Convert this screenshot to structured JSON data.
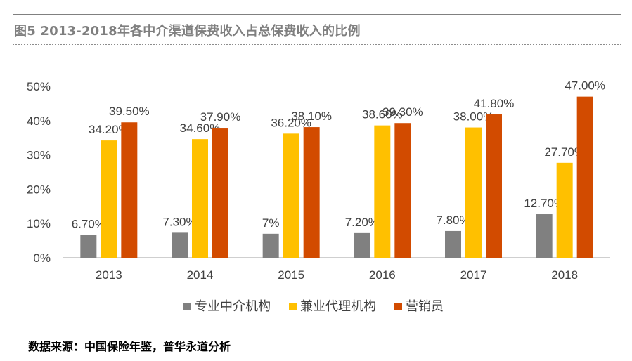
{
  "header": {
    "title": "图5 2013-2018年各中介渠道保费收入占总保费收入的比例"
  },
  "chart_data": {
    "type": "bar",
    "title": "图5 2013-2018年各中介渠道保费收入占总保费收入的比例",
    "categories": [
      "2013",
      "2014",
      "2015",
      "2016",
      "2017",
      "2018"
    ],
    "series": [
      {
        "name": "专业中介机构",
        "color": "#808080",
        "values": [
          6.7,
          7.3,
          7.0,
          7.2,
          7.8,
          12.7
        ],
        "labels": [
          "6.70%",
          "7.30%",
          "7%",
          "7.20%",
          "7.80%",
          "12.70%"
        ]
      },
      {
        "name": "兼业代理机构",
        "color": "#ffc000",
        "values": [
          34.2,
          34.6,
          36.2,
          38.6,
          38.0,
          27.7
        ],
        "labels": [
          "34.20%",
          "34.60%",
          "36.20%",
          "38.60%",
          "38.00%",
          "27.70%"
        ]
      },
      {
        "name": "营销员",
        "color": "#d24b00",
        "values": [
          39.5,
          37.9,
          38.1,
          39.3,
          41.8,
          47.0
        ],
        "labels": [
          "39.50%",
          "37.90%",
          "38.10%",
          "39.30%",
          "41.80%",
          "47.00%"
        ]
      }
    ],
    "ylim": [
      0,
      50
    ],
    "yticks": [
      0,
      10,
      20,
      30,
      40,
      50
    ],
    "ytick_labels": [
      "0%",
      "10%",
      "20%",
      "30%",
      "40%",
      "50%"
    ],
    "xlabel": "",
    "ylabel": "",
    "grid": false,
    "legend": "bottom"
  },
  "footer": {
    "source": "数据来源：中国保险年鉴，普华永道分析"
  }
}
